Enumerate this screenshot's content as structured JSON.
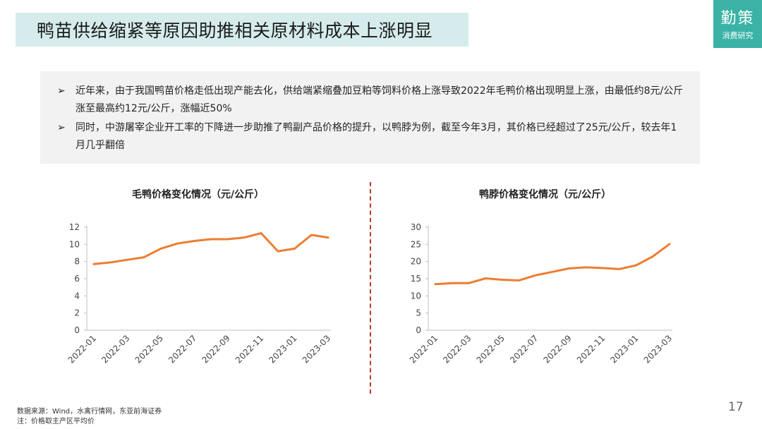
{
  "header": {
    "title": "鸭苗供给缩紧等原因助推相关原材料成本上涨明显"
  },
  "logo": {
    "main": "勤策",
    "sub": "消费研究"
  },
  "summary": {
    "bullet_symbol": "➢",
    "bullets": [
      "近年来，由于我国鸭苗价格走低出现产能去化，供给端紧缩叠加豆粕等饲料价格上涨导致2022年毛鸭价格出现明显上涨，由最低约8元/公斤涨至最高约12元/公斤，涨幅近50%",
      "同时，中游屠宰企业开工率的下降进一步助推了鸭副产品价格的提升，以鸭脖为例，截至今年3月，其价格已经超过了25元/公斤，较去年1月几乎翻倍"
    ]
  },
  "chart_data": [
    {
      "type": "line",
      "title": "毛鸭价格变化情况（元/公斤）",
      "x": [
        "2022-01",
        "2022-02",
        "2022-03",
        "2022-04",
        "2022-05",
        "2022-06",
        "2022-07",
        "2022-08",
        "2022-09",
        "2022-10",
        "2022-11",
        "2022-12",
        "2023-01",
        "2023-02",
        "2023-03"
      ],
      "x_tick_labels": [
        "2022-01",
        "2022-03",
        "2022-05",
        "2022-07",
        "2022-09",
        "2022-11",
        "2023-01",
        "2023-03"
      ],
      "series": [
        {
          "values": [
            7.7,
            7.9,
            8.2,
            8.5,
            9.5,
            10.1,
            10.4,
            10.6,
            10.6,
            10.8,
            11.3,
            9.2,
            9.5,
            11.1,
            10.8
          ]
        }
      ],
      "ylim": [
        0,
        12
      ],
      "yticks": [
        0,
        2,
        4,
        6,
        8,
        10,
        12
      ],
      "grid": false,
      "line_color": "#ed7d31"
    },
    {
      "type": "line",
      "title": "鸭脖价格变化情况（元/公斤）",
      "x": [
        "2022-01",
        "2022-02",
        "2022-03",
        "2022-04",
        "2022-05",
        "2022-06",
        "2022-07",
        "2022-08",
        "2022-09",
        "2022-10",
        "2022-11",
        "2022-12",
        "2023-01",
        "2023-02",
        "2023-03"
      ],
      "x_tick_labels": [
        "2022-01",
        "2022-03",
        "2022-05",
        "2022-07",
        "2022-09",
        "2022-11",
        "2023-01",
        "2023-03"
      ],
      "series": [
        {
          "values": [
            13.4,
            13.7,
            13.7,
            15.1,
            14.7,
            14.5,
            16.0,
            17.0,
            18.0,
            18.3,
            18.1,
            17.8,
            18.9,
            21.5,
            25.1
          ]
        }
      ],
      "ylim": [
        0,
        30
      ],
      "yticks": [
        0,
        5,
        10,
        15,
        20,
        25,
        30
      ],
      "grid": false,
      "line_color": "#ed7d31"
    }
  ],
  "footer": {
    "source": "数据来源：Wind，水禽行情网，东亚前海证券",
    "note": "注：价格取主产区平均价",
    "page_number": "17"
  },
  "colors": {
    "accent": "#3ab3a6",
    "title_bg": "#d6ecec",
    "line": "#ed7d31",
    "divider": "#c0392b"
  }
}
